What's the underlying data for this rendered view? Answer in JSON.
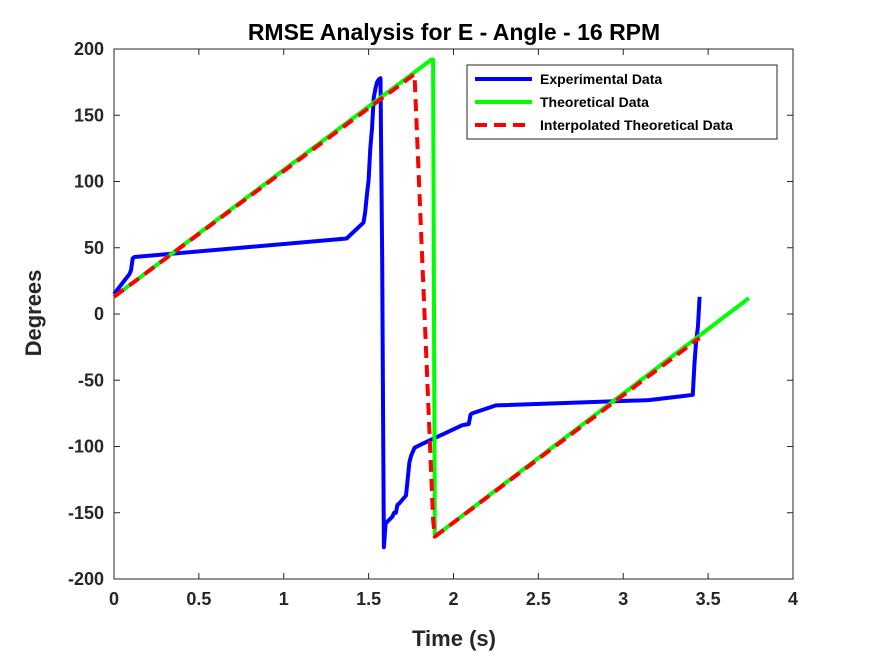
{
  "chart_data": {
    "type": "line",
    "title": "RMSE Analysis for E - Angle - 16 RPM",
    "xlabel": "Time (s)",
    "ylabel": "Degrees",
    "xlim": [
      0,
      4
    ],
    "ylim": [
      -200,
      200
    ],
    "xticks": [
      0,
      0.5,
      1,
      1.5,
      2,
      2.5,
      3,
      3.5,
      4
    ],
    "yticks": [
      -200,
      -150,
      -100,
      -50,
      0,
      50,
      100,
      150,
      200
    ],
    "xtick_labels": [
      "0",
      "0.5",
      "1",
      "1.5",
      "2",
      "2.5",
      "3",
      "3.5",
      "4"
    ],
    "ytick_labels": [
      "-200",
      "-150",
      "-100",
      "-50",
      "0",
      "50",
      "100",
      "150",
      "200"
    ],
    "grid": false,
    "legend_position": "top-right",
    "series": [
      {
        "name": "Experimental Data",
        "color": "#0000ff",
        "style": "solid",
        "x": [
          0,
          0.06,
          0.09,
          0.1,
          0.11,
          0.12,
          1.37,
          1.47,
          1.48,
          1.49,
          1.5,
          1.51,
          1.52,
          1.53,
          1.54,
          1.55,
          1.56,
          1.57,
          1.58,
          1.585,
          1.59,
          1.6,
          1.64,
          1.65,
          1.66,
          1.67,
          1.68,
          1.7,
          1.72,
          1.74,
          1.75,
          1.77,
          1.8,
          1.85,
          1.9,
          1.95,
          2.05,
          2.09,
          2.1,
          2.11,
          2.25,
          3.15,
          3.35,
          3.41,
          3.42,
          3.43,
          3.44,
          3.45
        ],
        "y": [
          15,
          25,
          30,
          33,
          42,
          43,
          57,
          69,
          77,
          90,
          101,
          125,
          140,
          163,
          170,
          175,
          177,
          178,
          40,
          -80,
          -176,
          -158,
          -153,
          -150,
          -150,
          -144,
          -143,
          -140,
          -137,
          -112,
          -107,
          -101,
          -99,
          -96,
          -93,
          -90,
          -84,
          -83,
          -76,
          -75,
          -69,
          -65,
          -62,
          -61,
          -37,
          -20,
          -10,
          13
        ]
      },
      {
        "name": "Theoretical Data",
        "color": "#00ff00",
        "style": "solid",
        "x": [
          0,
          1.87,
          1.88,
          1.89,
          3.74
        ],
        "y": [
          13,
          192,
          192,
          -168,
          12
        ]
      },
      {
        "name": "Interpolated Theoretical Data",
        "color": "#ff0000",
        "style": "dashed",
        "x": [
          0,
          1.77,
          1.88,
          1.89,
          3.45
        ],
        "y": [
          13,
          181,
          -155,
          -168,
          -18
        ]
      }
    ]
  }
}
